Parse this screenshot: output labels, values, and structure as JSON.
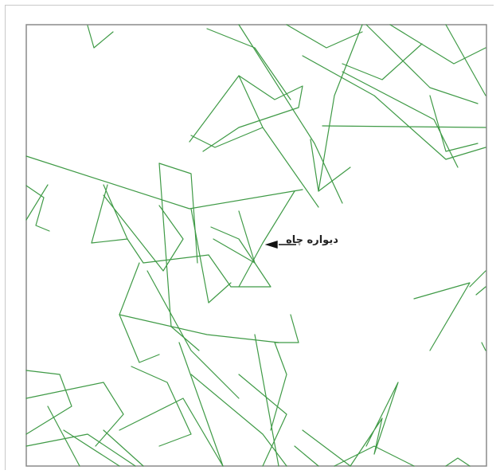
{
  "annotation": {
    "text": "دیواره چاه"
  },
  "colors": {
    "line": "#3f9a46",
    "frame": "#8a8a8a",
    "background": "#ffffff"
  }
}
